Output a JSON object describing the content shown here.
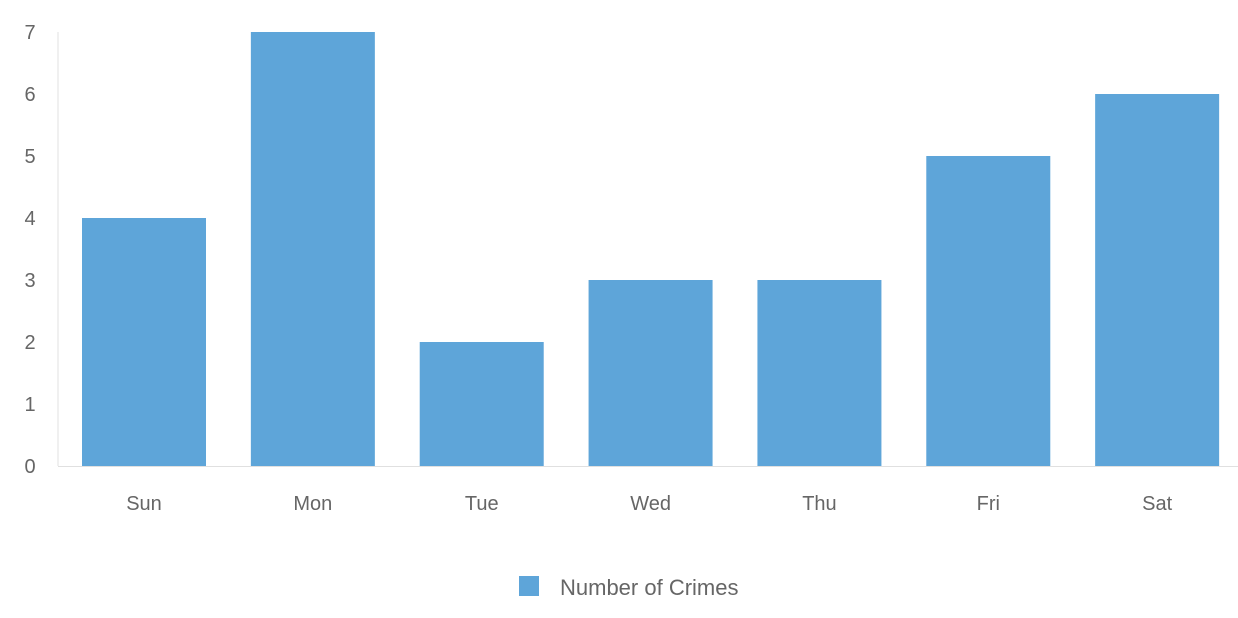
{
  "chart_data": {
    "type": "bar",
    "categories": [
      "Sun",
      "Mon",
      "Tue",
      "Wed",
      "Thu",
      "Fri",
      "Sat"
    ],
    "series": [
      {
        "name": "Number of Crimes",
        "values": [
          4,
          7,
          2,
          3,
          3,
          5,
          6
        ],
        "color": "#5ea5d9"
      }
    ],
    "y_ticks": [
      "0",
      "1",
      "2",
      "3",
      "4",
      "5",
      "6",
      "7"
    ],
    "ylim": [
      0,
      7
    ],
    "grid": false,
    "legend_position": "bottom-center",
    "axis_color": "#e0e0e0",
    "text_color": "#666666"
  }
}
